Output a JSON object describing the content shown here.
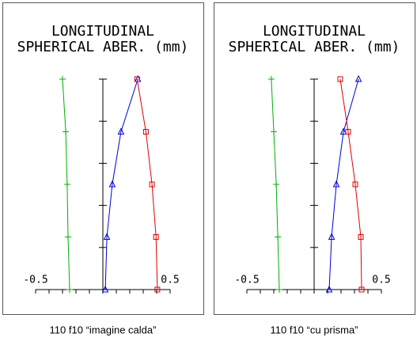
{
  "chart_data": [
    {
      "type": "line",
      "title_lines": [
        "LONGITUDINAL",
        "SPHERICAL ABER. (mm)"
      ],
      "caption": "110 f10 “imagine calda”",
      "pupil": [
        0,
        0.25,
        0.5,
        0.75,
        1
      ],
      "series": [
        {
          "color": "#00b000",
          "marker": "plus",
          "values": [
            -0.247,
            -0.259,
            -0.265,
            -0.276,
            -0.3
          ]
        },
        {
          "color": "#0000e0",
          "marker": "triangle",
          "values": [
            0.018,
            0.03,
            0.07,
            0.135,
            0.26
          ]
        },
        {
          "color": "#e00000",
          "marker": "square",
          "values": [
            0.405,
            0.395,
            0.365,
            0.32,
            0.255
          ]
        }
      ],
      "xlim": [
        -0.5,
        0.5
      ],
      "xticks": [
        -0.5,
        0.5
      ],
      "xminor_ticks": [
        -0.4,
        -0.3,
        -0.2,
        -0.1,
        0,
        0.1,
        0.2,
        0.3,
        0.4
      ],
      "ylim": [
        0,
        1
      ],
      "yticks": [
        0.2,
        0.4,
        0.6,
        0.8,
        1
      ]
    },
    {
      "type": "line",
      "title_lines": [
        "LONGITUDINAL",
        "SPHERICAL ABER. (mm)"
      ],
      "caption": "110 f10 “cu prisma”",
      "pupil": [
        0,
        0.25,
        0.5,
        0.75,
        1
      ],
      "series": [
        {
          "color": "#00b000",
          "marker": "plus",
          "values": [
            -0.259,
            -0.27,
            -0.282,
            -0.3,
            -0.318
          ]
        },
        {
          "color": "#0000e0",
          "marker": "triangle",
          "values": [
            0.112,
            0.13,
            0.165,
            0.218,
            0.33
          ]
        },
        {
          "color": "#e00000",
          "marker": "square",
          "values": [
            0.353,
            0.347,
            0.306,
            0.253,
            0.194
          ]
        }
      ],
      "xlim": [
        -0.5,
        0.5
      ],
      "xticks": [
        -0.5,
        0.5
      ],
      "xminor_ticks": [
        -0.4,
        -0.3,
        -0.2,
        -0.1,
        0,
        0.1,
        0.2,
        0.3,
        0.4
      ],
      "ylim": [
        0,
        1
      ],
      "yticks": [
        0.2,
        0.4,
        0.6,
        0.8,
        1
      ]
    }
  ]
}
